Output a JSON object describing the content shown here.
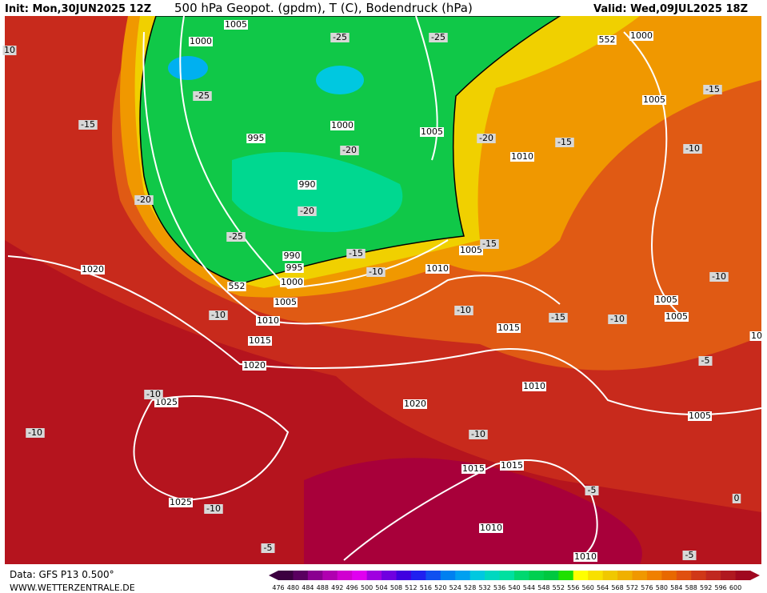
{
  "header": {
    "init": "Init: Mon,30JUN2025 12Z",
    "title": "500 hPa Geopot. (gpdm), T (C), Bodendruck (hPa)",
    "valid": "Valid: Wed,09JUL2025 18Z"
  },
  "isobar_labels": [
    "1005",
    "1000",
    "995",
    "1000",
    "990",
    "990",
    "995",
    "1000",
    "1005",
    "1010",
    "1015",
    "1020",
    "1020",
    "1025",
    "1025",
    "1020",
    "1015",
    "1015",
    "1010",
    "1010",
    "1010",
    "1015",
    "1010",
    "1005",
    "1005",
    "1010",
    "1005",
    "1000",
    "1005",
    "1005",
    "1005",
    "10"
  ],
  "temperature_labels": [
    "-25",
    "-25",
    "-25",
    "-15",
    "-20",
    "-20",
    "-15",
    "-15",
    "-10",
    "-20",
    "-20",
    "-25",
    "-15",
    "-15",
    "-10",
    "-10",
    "-10",
    "-15",
    "-10",
    "-10",
    "-5",
    "-10",
    "-10",
    "-10",
    "-10",
    "-5",
    "-5",
    "-5",
    "0",
    "10"
  ],
  "geopotential_labels": [
    "552",
    "552"
  ],
  "colorbar": {
    "labels": [
      476,
      480,
      484,
      488,
      492,
      496,
      500,
      504,
      508,
      512,
      516,
      520,
      524,
      528,
      532,
      536,
      540,
      544,
      548,
      552,
      556,
      560,
      564,
      568,
      572,
      576,
      580,
      584,
      588,
      592,
      596,
      600
    ],
    "colors": [
      "#3c0040",
      "#5a0060",
      "#8a0090",
      "#b000b0",
      "#d000d0",
      "#e000f0",
      "#a000e0",
      "#7000e0",
      "#4000e0",
      "#2020f0",
      "#1050f0",
      "#0080f0",
      "#00a0f0",
      "#00c8e0",
      "#00d8c0",
      "#00e0a0",
      "#00d870",
      "#00d050",
      "#00c840",
      "#20e000",
      "#ffff00",
      "#f8e000",
      "#f0c800",
      "#f0b000",
      "#f09800",
      "#f08000",
      "#e86800",
      "#e05010",
      "#d03818",
      "#c02820",
      "#b01820",
      "#a00820"
    ]
  },
  "footer": {
    "data": "Data: GFS P13 0.500°",
    "site": "WWW.WETTERZENTRALE.DE"
  }
}
